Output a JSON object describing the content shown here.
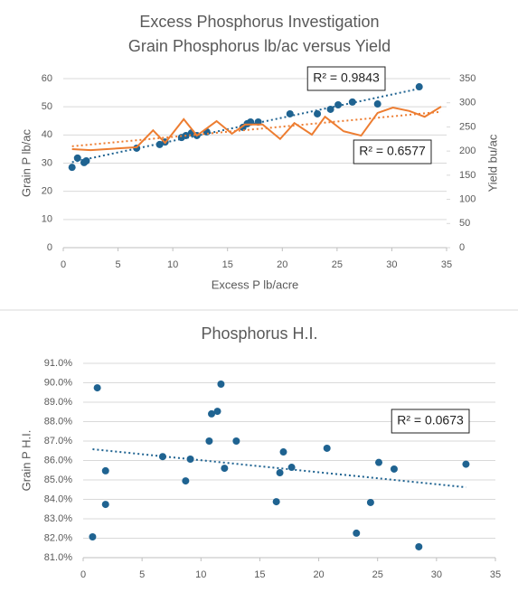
{
  "chart_data": [
    {
      "type": "scatter",
      "title": "Excess Phosphorus Investigation",
      "subtitle": "Grain Phosphorus lb/ac versus Yield",
      "x_label": "Excess P lb/acre",
      "y_label": "Grain P lb/ac",
      "y2_label": "Yield bu/ac",
      "xlim": [
        0,
        35
      ],
      "xticks": [
        0,
        5,
        10,
        15,
        20,
        25,
        30,
        35
      ],
      "ylim": [
        0,
        60
      ],
      "yticks": [
        0,
        10,
        20,
        30,
        40,
        50,
        60
      ],
      "y2lim": [
        0,
        350
      ],
      "y2ticks": [
        0,
        50,
        100,
        150,
        200,
        250,
        300,
        350
      ],
      "grid": true,
      "annotations": [
        "R² = 0.9843",
        "R² = 0.6577"
      ],
      "series": [
        {
          "type": "scatter",
          "color": "#1f6391",
          "trendline": true,
          "x": [
            0.8,
            1.3,
            1.9,
            2.1,
            6.7,
            8.8,
            9.3,
            10.8,
            11.2,
            11.7,
            12.2,
            13.1,
            16.4,
            16.8,
            17.1,
            17.8,
            20.7,
            23.2,
            24.4,
            25.1,
            26.4,
            28.7,
            32.5
          ],
          "values": [
            28.5,
            31.8,
            30.2,
            30.8,
            35.3,
            36.6,
            37.5,
            39.1,
            39.8,
            40.7,
            39.8,
            41.1,
            42.7,
            44.0,
            44.6,
            44.6,
            47.5,
            47.5,
            49.1,
            50.7,
            51.7,
            51.0,
            57.1
          ]
        },
        {
          "type": "line",
          "axis": "y2",
          "color": "#ed7d31",
          "trendline": true,
          "x": [
            0.8,
            2.5,
            6.7,
            8.2,
            9.3,
            11.0,
            12.2,
            14.0,
            15.4,
            16.6,
            18.2,
            19.8,
            21.1,
            22.7,
            23.9,
            25.6,
            27.2,
            28.7,
            30.1,
            31.6,
            33.0,
            34.5
          ],
          "values": [
            204,
            202,
            208,
            243,
            217,
            266,
            232,
            262,
            236,
            255,
            255,
            225,
            258,
            234,
            271,
            241,
            232,
            279,
            290,
            283,
            271,
            292
          ]
        }
      ]
    },
    {
      "type": "scatter",
      "title": "Phosphorus H.I.",
      "y_label": "Grain P H.I.",
      "xlim": [
        0,
        35
      ],
      "xticks": [
        0,
        5,
        10,
        15,
        20,
        25,
        30,
        35
      ],
      "ylim": [
        81,
        91
      ],
      "yticks": [
        {
          "value": 81,
          "label": "81.0%"
        },
        {
          "value": 82,
          "label": "82.0%"
        },
        {
          "value": 83,
          "label": "83.0%"
        },
        {
          "value": 84,
          "label": "84.0%"
        },
        {
          "value": 85,
          "label": "85.0%"
        },
        {
          "value": 86,
          "label": "86.0%"
        },
        {
          "value": 87,
          "label": "87.0%"
        },
        {
          "value": 88,
          "label": "88.0%"
        },
        {
          "value": 89,
          "label": "89.0%"
        },
        {
          "value": 90,
          "label": "90.0%"
        },
        {
          "value": 91,
          "label": "91.0%"
        }
      ],
      "grid": true,
      "annotations": [
        "R² = 0.0673"
      ],
      "series": [
        {
          "type": "scatter",
          "color": "#1f6391",
          "trendline": true,
          "x": [
            0.8,
            1.2,
            1.9,
            1.9,
            6.75,
            8.7,
            9.1,
            10.7,
            10.9,
            11.4,
            11.7,
            12.0,
            13.0,
            16.4,
            16.7,
            17.0,
            17.7,
            20.7,
            23.2,
            24.4,
            25.1,
            26.4,
            28.5,
            32.5
          ],
          "values": [
            82.07,
            89.74,
            85.47,
            83.74,
            86.2,
            84.95,
            86.07,
            87.0,
            88.4,
            88.53,
            89.93,
            85.6,
            87.0,
            83.88,
            85.37,
            86.44,
            85.65,
            86.63,
            82.26,
            83.84,
            85.9,
            85.56,
            81.56,
            85.81
          ]
        }
      ]
    }
  ]
}
